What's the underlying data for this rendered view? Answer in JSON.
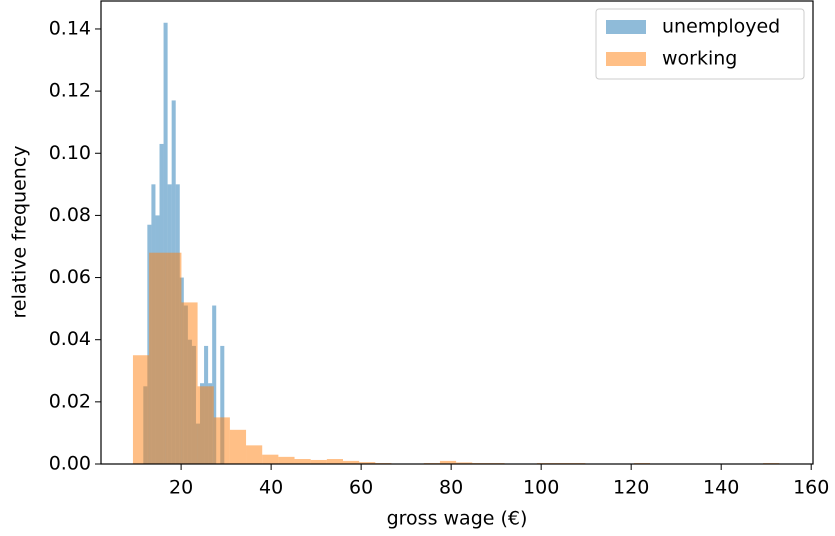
{
  "chart_data": {
    "type": "histogram",
    "xlabel": "gross wage (€)",
    "ylabel": "relative frequency",
    "xlim": [
      2.2,
      160.4
    ],
    "ylim": [
      0,
      0.149
    ],
    "xticks": [
      20,
      40,
      60,
      80,
      100,
      120,
      140,
      160
    ],
    "yticks": [
      {
        "value": 0,
        "label": "0.00"
      },
      {
        "value": 0.02,
        "label": "0.02"
      },
      {
        "value": 0.04,
        "label": "0.04"
      },
      {
        "value": 0.06,
        "label": "0.06"
      },
      {
        "value": 0.08,
        "label": "0.08"
      },
      {
        "value": 0.1,
        "label": "0.10"
      },
      {
        "value": 0.12,
        "label": "0.12"
      },
      {
        "value": 0.14,
        "label": "0.14"
      }
    ],
    "legend": "upper right",
    "opacity": 0.5,
    "series": [
      {
        "name": "unemployed",
        "color": "#1f77b4",
        "bins": [
          9.8,
          10.7,
          11.6,
          12.5,
          13.4,
          14.3,
          15.2,
          16.1,
          17,
          17.9,
          18.8,
          19.7,
          20.6,
          21.5,
          22.4,
          23.3,
          24.2,
          25.1,
          26,
          26.9,
          27.8,
          28.7,
          29.6,
          30.5
        ],
        "values": [
          0,
          0,
          0.025,
          0.077,
          0.09,
          0.08,
          0.103,
          0.142,
          0.09,
          0.117,
          0.09,
          0.06,
          0.051,
          0.04,
          0.038,
          0.013,
          0.026,
          0.038,
          0.026,
          0.051,
          0,
          0.038,
          0
        ]
      },
      {
        "name": "working",
        "color": "#ff7f0e",
        "bins": [
          9.3,
          12.89,
          16.48,
          20.07,
          23.66,
          27.25,
          30.84,
          34.43,
          38.02,
          41.61,
          45.2,
          48.79,
          52.38,
          55.97,
          59.56,
          63.15,
          66.74,
          70.33,
          73.92,
          77.51,
          81.1,
          84.69,
          88.28,
          91.87,
          95.46,
          99.05,
          102.64,
          106.23,
          109.82,
          113.41,
          117,
          120.59,
          124.18,
          127.77,
          131.36,
          134.95,
          138.54,
          142.13,
          145.72,
          149.31,
          152.9
        ],
        "values": [
          0.035,
          0.068,
          0.068,
          0.052,
          0.025,
          0.015,
          0.011,
          0.006,
          0.003,
          0.0023,
          0.0016,
          0.0013,
          0.0016,
          0.001,
          0.0006,
          0.0003,
          0,
          0,
          0.0003,
          0.001,
          0.0005,
          0.0003,
          0.0003,
          0,
          0,
          0.0003,
          0.0003,
          0.0003,
          0,
          0,
          0,
          0.0003,
          0,
          0,
          0,
          0,
          0,
          0,
          0,
          0.0003
        ]
      }
    ]
  }
}
